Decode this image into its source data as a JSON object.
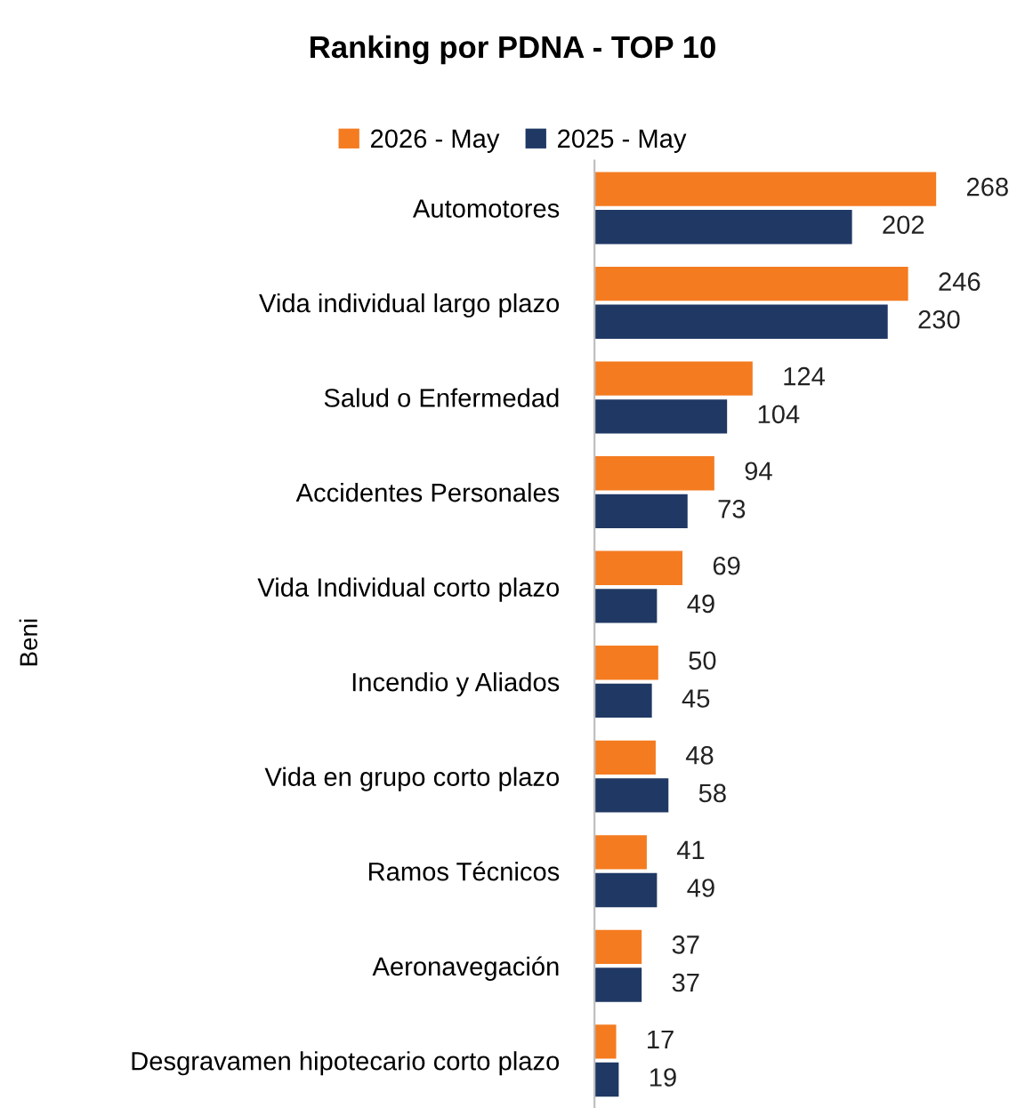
{
  "chart_data": {
    "type": "bar",
    "orientation": "horizontal",
    "title": "Ranking por PDNA - TOP 10",
    "ylabel": "Beni",
    "categories": [
      "Automotores",
      "Vida individual largo plazo",
      "Salud o Enfermedad",
      "Accidentes Personales",
      "Vida Individual corto plazo",
      "Incendio y Aliados",
      "Vida en grupo corto plazo",
      "Ramos Técnicos",
      "Aeronavegación",
      "Desgravamen hipotecario corto plazo"
    ],
    "series": [
      {
        "name": "2026 - May",
        "color": "#f47b20",
        "values": [
          268,
          246,
          124,
          94,
          69,
          50,
          48,
          41,
          37,
          17
        ]
      },
      {
        "name": "2025 - May",
        "color": "#203864",
        "values": [
          202,
          230,
          104,
          73,
          49,
          45,
          58,
          49,
          37,
          19
        ]
      }
    ],
    "data_labels": true,
    "legend": "top",
    "tick_labels": "y",
    "grid": false
  }
}
